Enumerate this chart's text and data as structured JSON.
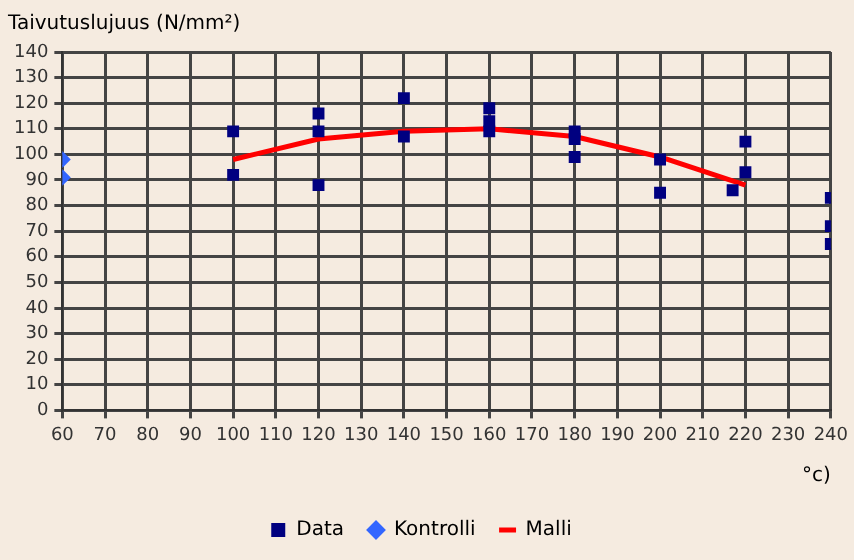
{
  "chart_data": {
    "type": "scatter",
    "ylabel": "Taivutuslujuus (N/mm²)",
    "xlabel": "°c)",
    "xlim": [
      60,
      240
    ],
    "xticks": [
      60,
      70,
      80,
      90,
      100,
      110,
      120,
      130,
      140,
      150,
      160,
      170,
      180,
      190,
      200,
      210,
      220,
      230,
      240
    ],
    "ylim": [
      0,
      140
    ],
    "yticks": [
      0,
      10,
      20,
      30,
      40,
      50,
      60,
      70,
      80,
      90,
      100,
      110,
      120,
      130,
      140
    ],
    "grid": true,
    "legend": "bottom",
    "series": [
      {
        "name": "Data",
        "color": "#000080",
        "marker": "square",
        "x": [
          100,
          100,
          120,
          120,
          120,
          140,
          140,
          160,
          160,
          160,
          180,
          180,
          180,
          200,
          200,
          217,
          220,
          220,
          240,
          240,
          240
        ],
        "values": [
          109,
          92,
          116,
          109,
          88,
          122,
          107,
          118,
          113,
          109,
          109,
          106,
          99,
          98,
          85,
          86,
          105,
          93,
          83,
          72,
          65
        ]
      },
      {
        "name": "Kontrolli",
        "color": "#3366ff",
        "marker": "diamond",
        "x": [
          60,
          60
        ],
        "values": [
          98,
          91
        ]
      },
      {
        "name": "Malli",
        "type": "line",
        "color": "#ff0000",
        "marker": "none",
        "x": [
          100,
          120,
          140,
          160,
          180,
          200,
          220
        ],
        "values": [
          98,
          106,
          109,
          110,
          107,
          99,
          88
        ]
      }
    ]
  }
}
